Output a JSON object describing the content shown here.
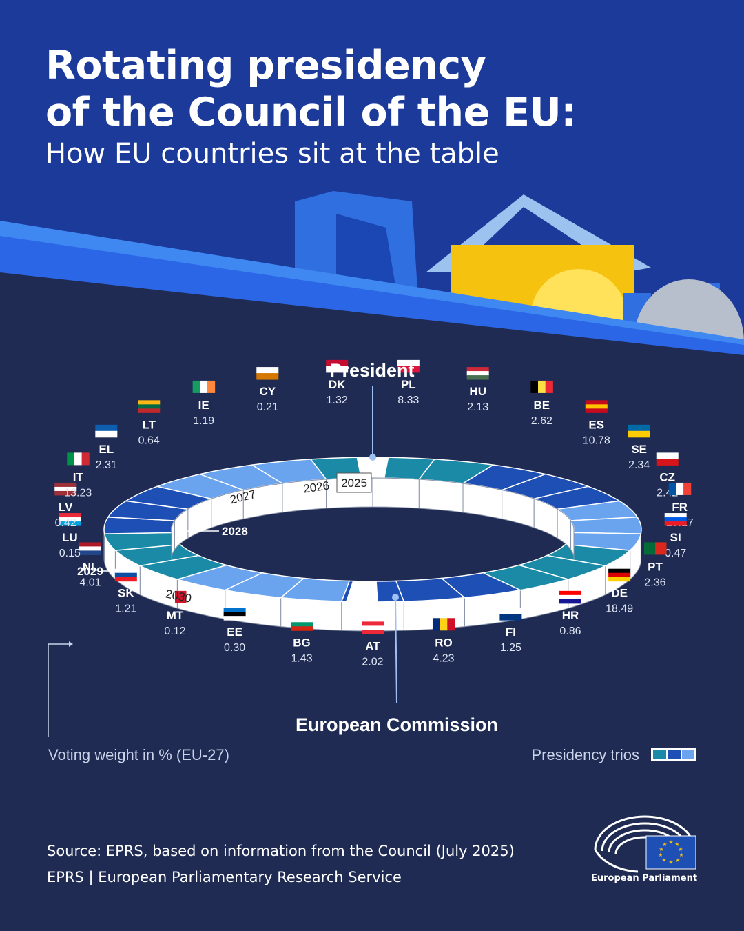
{
  "header": {
    "title_line1": "Rotating presidency",
    "title_line2": "of the Council of the EU:",
    "subtitle": "How EU countries sit at the table"
  },
  "labels": {
    "president": "President",
    "commission": "European Commission",
    "voting_weight": "Voting weight in % (EU-27)",
    "presidency_trios": "Presidency trios"
  },
  "years": [
    "2025",
    "2026",
    "2027",
    "2028",
    "2029",
    "2030"
  ],
  "countries": [
    {
      "code": "PL",
      "weight": "8.33"
    },
    {
      "code": "HU",
      "weight": "2.13"
    },
    {
      "code": "BE",
      "weight": "2.62"
    },
    {
      "code": "ES",
      "weight": "10.78"
    },
    {
      "code": "SE",
      "weight": "2.34"
    },
    {
      "code": "CZ",
      "weight": "2.42"
    },
    {
      "code": "FR",
      "weight": "15.17"
    },
    {
      "code": "SI",
      "weight": "0.47"
    },
    {
      "code": "PT",
      "weight": "2.36"
    },
    {
      "code": "DE",
      "weight": "18.49"
    },
    {
      "code": "HR",
      "weight": "0.86"
    },
    {
      "code": "FI",
      "weight": "1.25"
    },
    {
      "code": "RO",
      "weight": "4.23"
    },
    {
      "code": "AT",
      "weight": "2.02"
    },
    {
      "code": "BG",
      "weight": "1.43"
    },
    {
      "code": "EE",
      "weight": "0.30"
    },
    {
      "code": "MT",
      "weight": "0.12"
    },
    {
      "code": "SK",
      "weight": "1.21"
    },
    {
      "code": "NL",
      "weight": "4.01"
    },
    {
      "code": "LU",
      "weight": "0.15"
    },
    {
      "code": "LV",
      "weight": "0.42"
    },
    {
      "code": "IT",
      "weight": "13.23"
    },
    {
      "code": "EL",
      "weight": "2.31"
    },
    {
      "code": "LT",
      "weight": "0.64"
    },
    {
      "code": "IE",
      "weight": "1.19"
    },
    {
      "code": "CY",
      "weight": "0.21"
    },
    {
      "code": "DK",
      "weight": "1.32"
    }
  ],
  "trio_colors": [
    "#1a8aa6",
    "#1e4fb5",
    "#6aa4ee"
  ],
  "footer": {
    "source": "Source: EPRS, based on information from the Council (July 2025)",
    "org": "EPRS |  European Parliamentary Research Service",
    "logo_text": "European Parliament"
  }
}
